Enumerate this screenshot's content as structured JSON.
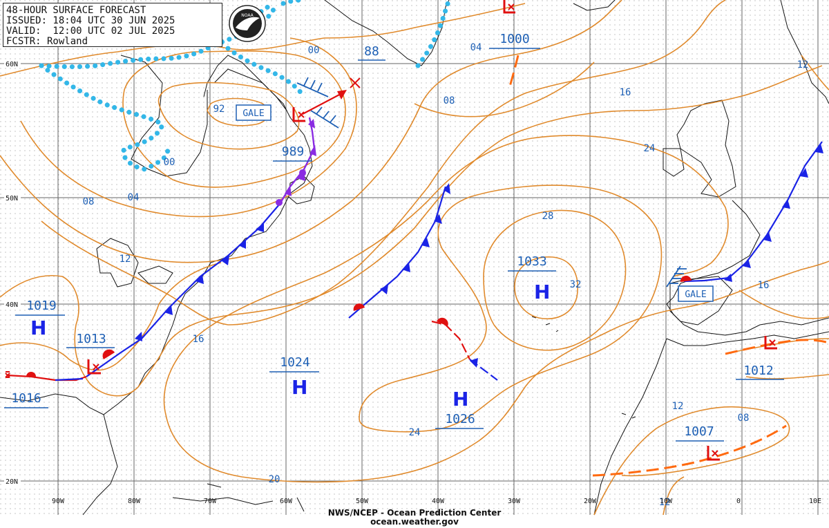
{
  "header": {
    "line1": "48-HOUR SURFACE FORECAST",
    "line2": "ISSUED: 18:04 UTC 30 JUN 2025",
    "line3": "VALID:  12:00 UTC 02 JUL 2025",
    "line4": "FCSTR: Rowland"
  },
  "logo_text": "NOAA",
  "footer": {
    "agency": "NWS/NCEP - Ocean Prediction Center",
    "website": "ocean.weather.gov"
  },
  "lat_labels": [
    "60N",
    "50N",
    "40N",
    "20N"
  ],
  "lon_labels": [
    "90W",
    "80W",
    "70W",
    "60W",
    "50W",
    "40W",
    "30W",
    "20W",
    "10W",
    "0",
    "10E"
  ],
  "pressure_centers": {
    "H1019": {
      "type": "H",
      "value": "1019"
    },
    "L1013": {
      "type": "L",
      "value": "1013"
    },
    "L1016": {
      "type": "L",
      "value": "1016"
    },
    "H1024": {
      "type": "H",
      "value": "1024"
    },
    "H1026": {
      "type": "H",
      "value": "1026"
    },
    "H1033": {
      "type": "H",
      "value": "1033"
    },
    "L989": {
      "type": "L",
      "value": "989"
    },
    "L1000": {
      "type": "L",
      "value": "1000"
    },
    "L1012": {
      "type": "L",
      "value": "1012"
    },
    "L1007": {
      "type": "L",
      "value": "1007"
    },
    "L88": {
      "type": "L",
      "value": "88"
    }
  },
  "warnings": [
    "GALE",
    "GALE"
  ],
  "isobar_labels": [
    "00",
    "04",
    "08",
    "12",
    "16",
    "20",
    "24",
    "28",
    "32",
    "92",
    "00",
    "04",
    "08",
    "12",
    "16",
    "24",
    "16",
    "12",
    "08",
    "12"
  ],
  "colors": {
    "isobar": "#e08a2c",
    "grid": "#555555",
    "coast": "#111111",
    "label_blue": "#1d5fb4",
    "cold_front": "#1a23e6",
    "warm_front": "#e01010",
    "occluded": "#8a2be2",
    "ice_edge": "#33b7e8",
    "trough": "#ff6a10",
    "vector": "#e01010"
  }
}
